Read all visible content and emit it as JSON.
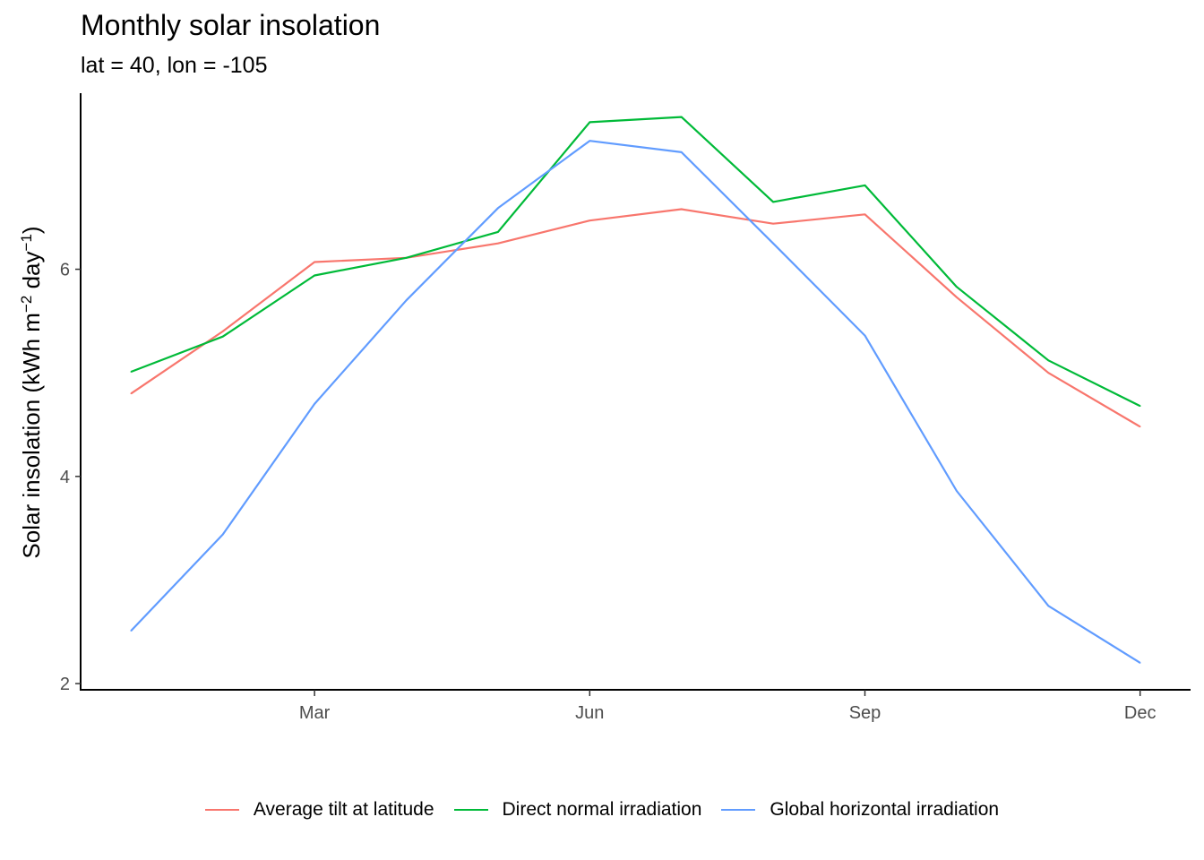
{
  "chart_data": {
    "type": "line",
    "title": "Monthly solar insolation",
    "subtitle": "lat = 40, lon = -105",
    "ylabel": "Solar insolation (kWh m",
    "ylabel_sup1": "−2",
    "ylabel_mid": " day",
    "ylabel_sup2": "−1",
    "ylabel_end": ")",
    "xlabel": "",
    "x_ticks": [
      {
        "month": 3,
        "label": "Mar"
      },
      {
        "month": 6,
        "label": "Jun"
      },
      {
        "month": 9,
        "label": "Sep"
      },
      {
        "month": 12,
        "label": "Dec"
      }
    ],
    "y_ticks": [
      2,
      4,
      6
    ],
    "ylim": [
      1.94,
      7.7
    ],
    "xlim": [
      0.45,
      12.55
    ],
    "x": [
      1,
      2,
      3,
      4,
      5,
      6,
      7,
      8,
      9,
      10,
      11,
      12
    ],
    "grid": false,
    "legend_position": "bottom",
    "series": [
      {
        "name": "Average tilt at latitude",
        "color": "#F8766D",
        "values": [
          4.8,
          5.4,
          6.07,
          6.11,
          6.25,
          6.47,
          6.58,
          6.44,
          6.53,
          5.73,
          5.0,
          4.48
        ]
      },
      {
        "name": "Direct normal irradiation",
        "color": "#00BA38",
        "values": [
          5.01,
          5.35,
          5.94,
          6.11,
          6.36,
          7.42,
          7.47,
          6.65,
          6.81,
          5.83,
          5.12,
          4.68
        ]
      },
      {
        "name": "Global horizontal irradiation",
        "color": "#619CFF",
        "values": [
          2.51,
          3.44,
          4.7,
          5.7,
          6.59,
          7.24,
          7.13,
          6.25,
          5.36,
          3.86,
          2.75,
          2.2
        ]
      }
    ]
  }
}
